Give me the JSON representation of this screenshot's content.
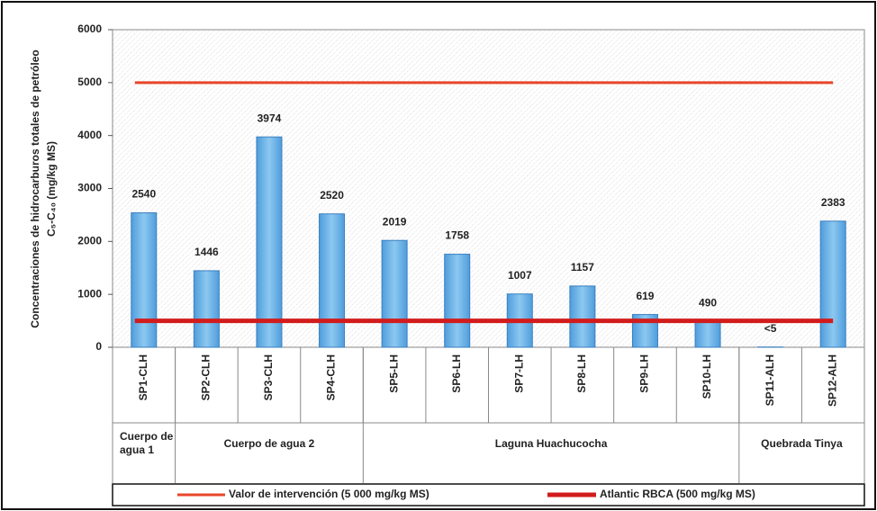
{
  "chart_data": {
    "type": "bar",
    "y_label": [
      "Concentraciones de hidrocarburos totales de petróleo",
      "C₅-C₄₀ (mg/kg MS)"
    ],
    "categories": [
      "SP1-CLH",
      "SP2-CLH",
      "SP3-CLH",
      "SP4-CLH",
      "SP5-LH",
      "SP6-LH",
      "SP7-LH",
      "SP8-LH",
      "SP9-LH",
      "SP10-LH",
      "SP11-ALH",
      "SP12-ALH"
    ],
    "values": [
      2540,
      1446,
      3974,
      2520,
      2019,
      1758,
      1007,
      1157,
      619,
      490,
      5,
      2383
    ],
    "value_labels": [
      "2540",
      "1446",
      "3974",
      "2520",
      "2019",
      "1758",
      "1007",
      "1157",
      "619",
      "490",
      "<5",
      "2383"
    ],
    "color": "#6cb4e6",
    "groups": [
      "Cuerpo de agua 1",
      "Cuerpo de agua 2",
      "Laguna Huachucocha",
      "Quebrada Tinya"
    ],
    "reference_lines": [
      {
        "name": "Valor de intervención (5 000 mg/kg MS)",
        "value": 5000,
        "color": "#e8452a"
      },
      {
        "name": "Atlantic RBCA (500 mg/kg MS)",
        "value": 500,
        "color": "#d21c1c"
      }
    ],
    "ylim": [
      0,
      6000
    ],
    "yticks": [
      0,
      1000,
      2000,
      3000,
      4000,
      5000,
      6000
    ],
    "grid": false
  }
}
